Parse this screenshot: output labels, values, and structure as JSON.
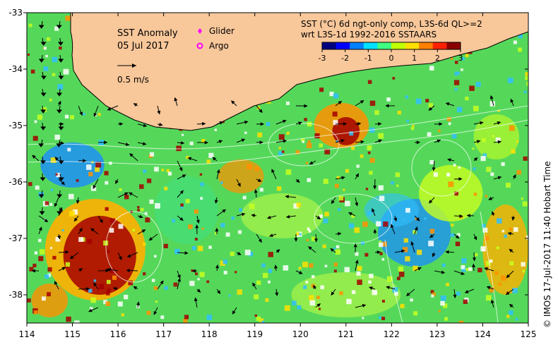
{
  "map": {
    "title": "SST Anomaly",
    "date": "05 Jul 2017",
    "velocity_scale_label": "0.5 m/s",
    "legend": [
      {
        "label": "Glider",
        "symbol": "diamond",
        "color": "#ff00ff"
      },
      {
        "label": "Argo",
        "symbol": "ring",
        "color": "#ff00ff"
      }
    ],
    "colorbar": {
      "title_line1": "SST (°C) 6d ngt-only comp, L3S-6d QL>=2",
      "title_line2": "wrt L3S-1d 1992-2016 SSTAARS",
      "ticks": [
        "-3",
        "-2",
        "-1",
        "0",
        "1",
        "2",
        "3"
      ],
      "colors": [
        "#00007f",
        "#0000ff",
        "#0080ff",
        "#00e0ff",
        "#40ff80",
        "#c0ff00",
        "#ffe000",
        "#ff8000",
        "#ff2000",
        "#8b0000"
      ]
    },
    "x_axis": {
      "ticks": [
        "114",
        "115",
        "116",
        "117",
        "118",
        "119",
        "120",
        "121",
        "122",
        "123",
        "124",
        "125"
      ],
      "range": [
        114,
        125
      ]
    },
    "y_axis": {
      "ticks": [
        "-33",
        "-34",
        "-35",
        "-36",
        "-37",
        "-38"
      ],
      "range": [
        -38.5,
        -33
      ]
    },
    "land_color": "#f8c79a",
    "credit": "©  IMOS 17-Jul-2017 11:40 Hobart Time"
  }
}
